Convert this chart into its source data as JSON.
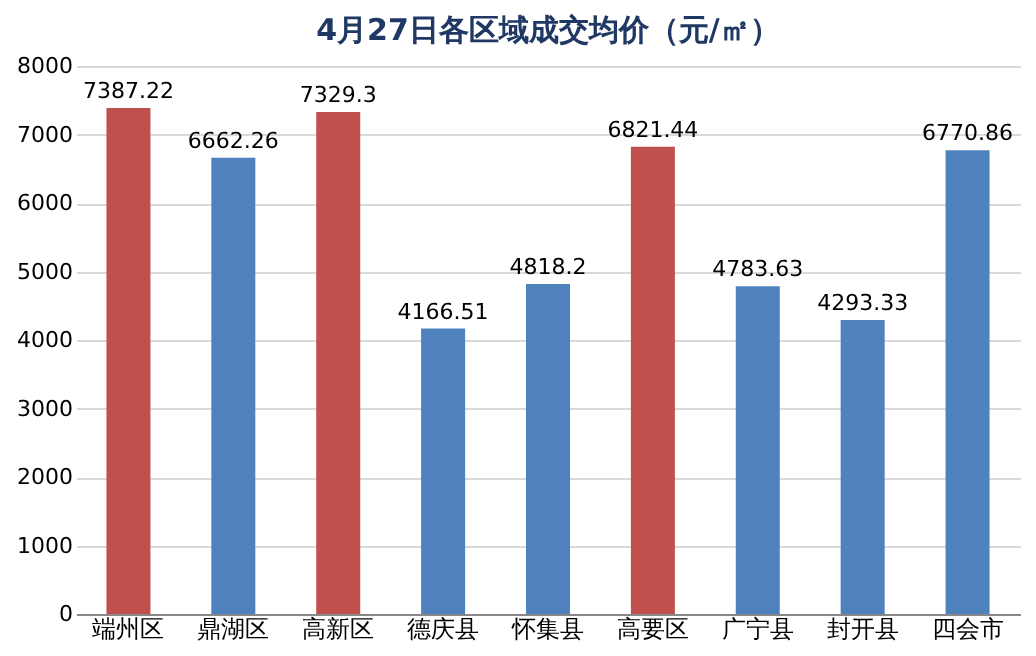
{
  "chart_data": {
    "type": "bar",
    "title": "4月27日各区域成交均价（元/㎡）",
    "categories": [
      "端州区",
      "鼎湖区",
      "高新区",
      "德庆县",
      "怀集县",
      "高要区",
      "广宁县",
      "封开县",
      "四会市"
    ],
    "values": [
      7387.22,
      6662.26,
      7329.3,
      4166.51,
      4818.2,
      6821.44,
      4783.63,
      4293.33,
      6770.86
    ],
    "colors": [
      "#c0504d",
      "#4f81bd",
      "#c0504d",
      "#4f81bd",
      "#4f81bd",
      "#c0504d",
      "#4f81bd",
      "#4f81bd",
      "#4f81bd"
    ],
    "ylim": [
      0,
      8000
    ],
    "yticks": [
      0,
      1000,
      2000,
      3000,
      4000,
      5000,
      6000,
      7000,
      8000
    ],
    "grid": "y",
    "data_labels": true
  }
}
